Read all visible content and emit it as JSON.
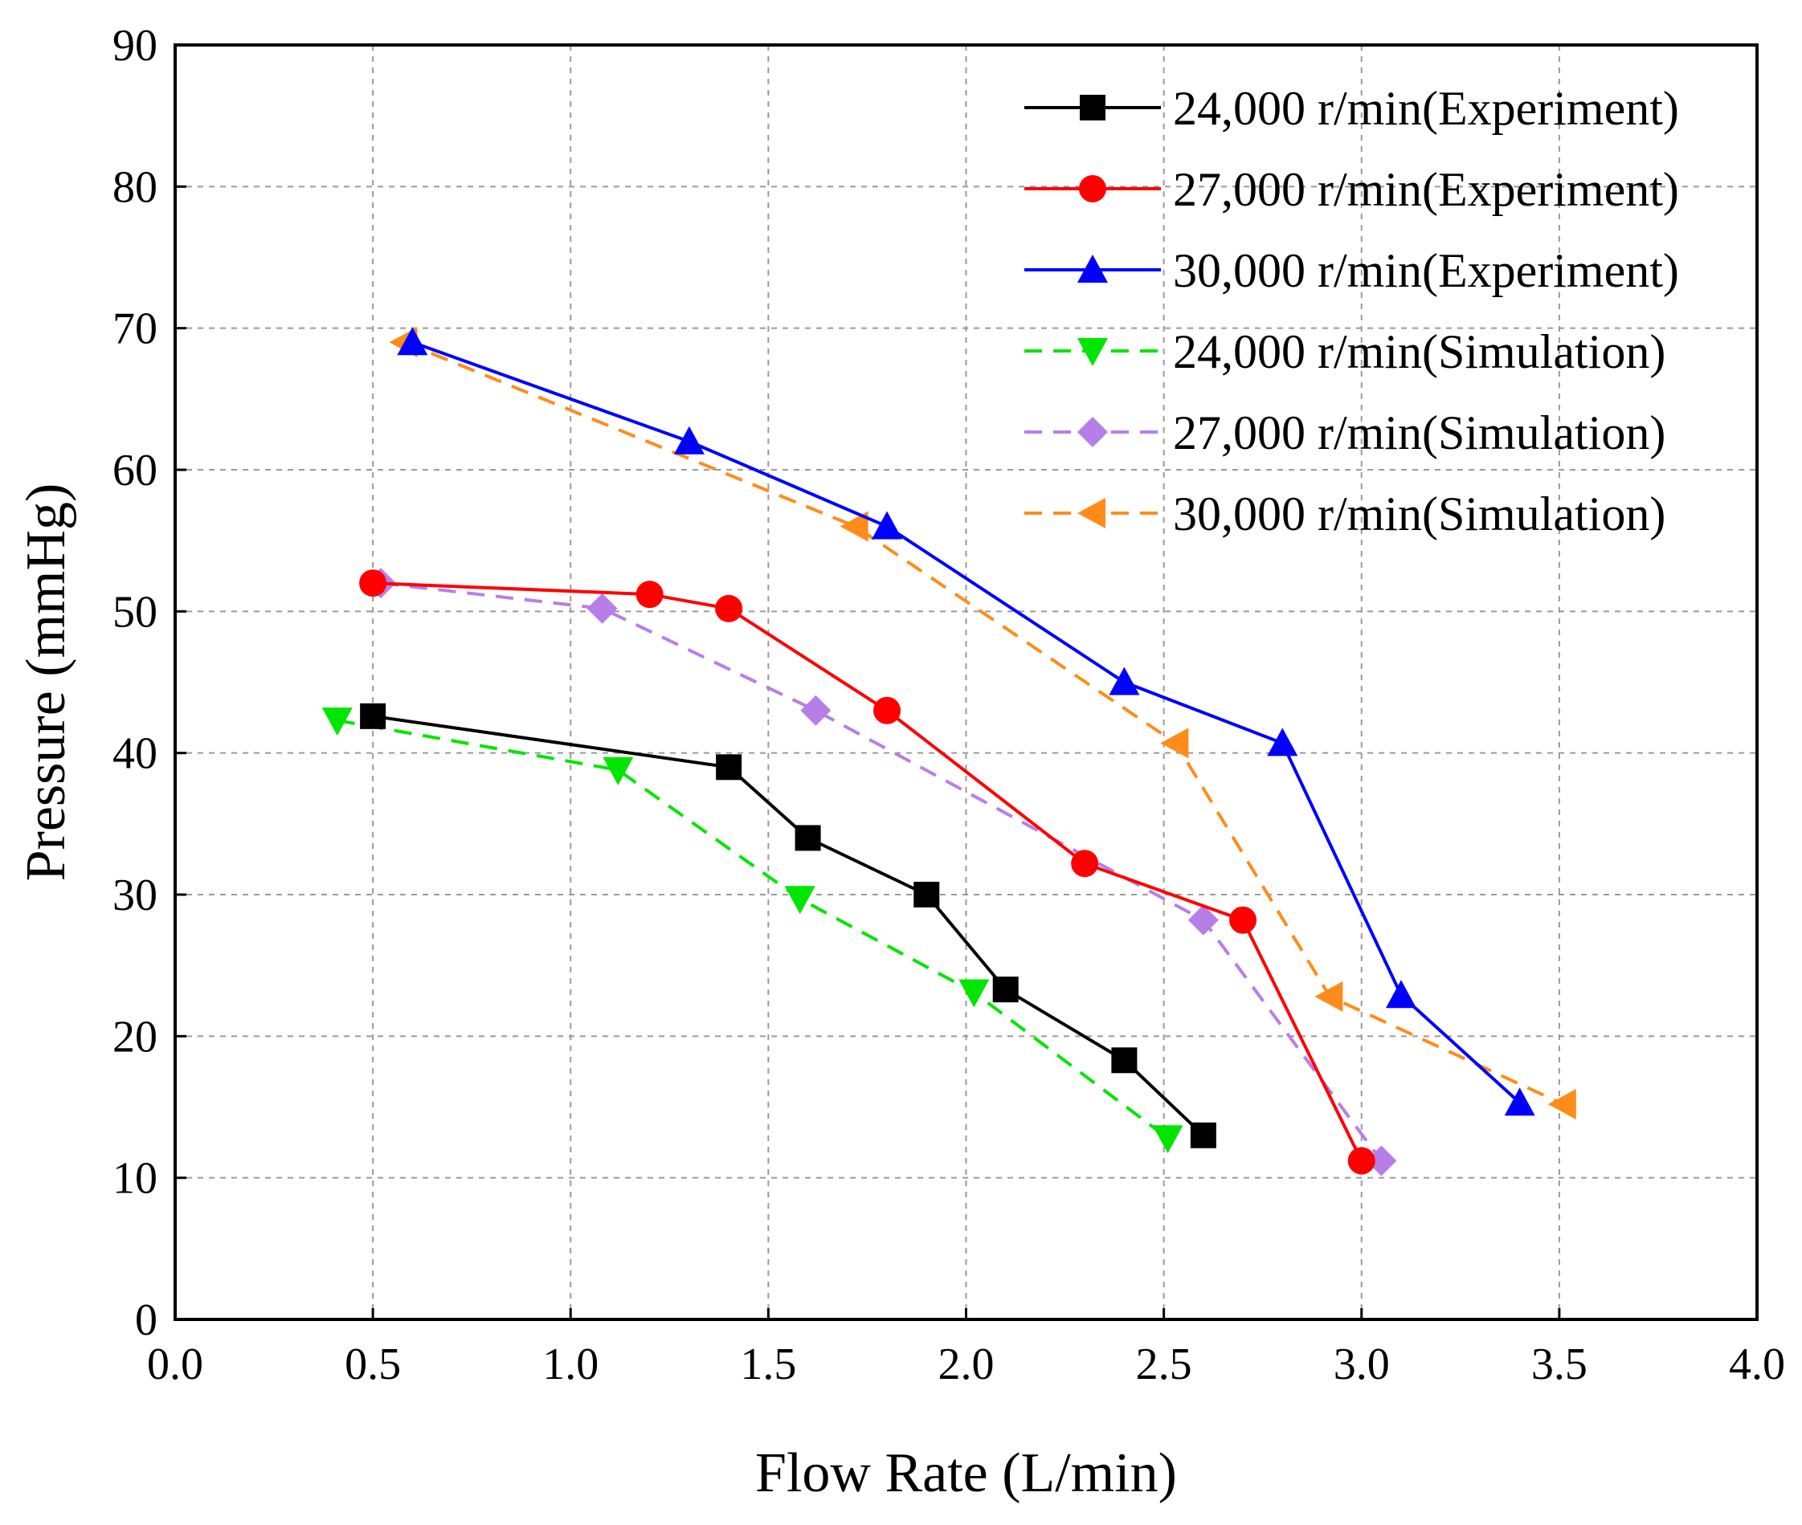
{
  "chart_data": {
    "type": "line",
    "title": "",
    "xlabel": "Flow Rate (L/min)",
    "ylabel": "Pressure (mmHg)",
    "xlim": [
      0,
      4
    ],
    "ylim": [
      0,
      90
    ],
    "xticks": [
      "0.0",
      "0.5",
      "1.0",
      "1.5",
      "2.0",
      "2.5",
      "3.0",
      "3.5",
      "4.0"
    ],
    "yticks": [
      "0",
      "10",
      "20",
      "30",
      "40",
      "50",
      "60",
      "70",
      "80",
      "90"
    ],
    "grid": true,
    "legend_position": "top-right",
    "series": [
      {
        "name": "24,000 r/min(Experiment)",
        "color": "#000000",
        "dash": "solid",
        "marker": "square",
        "x": [
          0.5,
          1.4,
          1.6,
          1.9,
          2.1,
          2.4,
          2.6
        ],
        "y": [
          42.6,
          39.0,
          34.0,
          30.0,
          23.3,
          18.3,
          13.0
        ]
      },
      {
        "name": "27,000 r/min(Experiment)",
        "color": "#ff0000",
        "dash": "solid",
        "marker": "circle",
        "x": [
          0.5,
          1.2,
          1.4,
          1.8,
          2.3,
          2.7,
          3.0
        ],
        "y": [
          52.0,
          51.2,
          50.2,
          43.0,
          32.2,
          28.2,
          11.2
        ]
      },
      {
        "name": "30,000 r/min(Experiment)",
        "color": "#0000ff",
        "dash": "solid",
        "marker": "triangle-up",
        "x": [
          0.6,
          1.3,
          1.8,
          2.4,
          2.8,
          3.1,
          3.4
        ],
        "y": [
          69.0,
          62.0,
          56.0,
          45.0,
          40.7,
          22.9,
          15.3
        ]
      },
      {
        "name": "24,000 r/min(Simulation)",
        "color": "#00e600",
        "dash": "dashed",
        "marker": "triangle-down",
        "x": [
          0.41,
          1.12,
          1.58,
          2.02,
          2.51
        ],
        "y": [
          42.3,
          38.8,
          29.7,
          23.1,
          12.8
        ]
      },
      {
        "name": "27,000 r/min(Simulation)",
        "color": "#b87ee8",
        "dash": "dashed",
        "marker": "diamond",
        "x": [
          0.52,
          1.08,
          1.62,
          2.6,
          3.05
        ],
        "y": [
          52.0,
          50.2,
          43.0,
          28.2,
          11.2
        ]
      },
      {
        "name": "30,000 r/min(Simulation)",
        "color": "#ff8c1a",
        "dash": "dashed",
        "marker": "triangle-left",
        "x": [
          0.58,
          1.72,
          2.53,
          2.92,
          3.51
        ],
        "y": [
          69.0,
          56.0,
          40.7,
          22.8,
          15.2
        ]
      }
    ]
  }
}
